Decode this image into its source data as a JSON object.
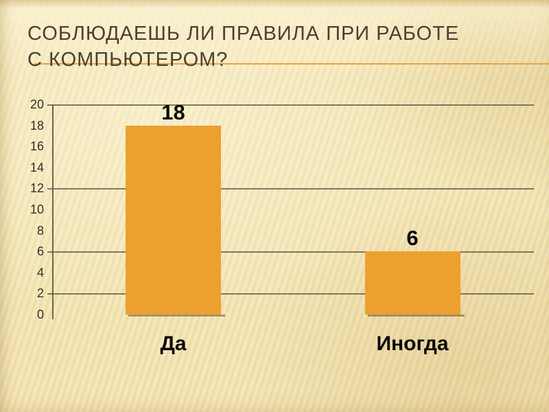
{
  "slide": {
    "title_lines": [
      "СОБЛЮДАЕШЬ ЛИ ПРАВИЛА ПРИ РАБОТЕ",
      "С КОМПЬЮТЕРОМ?"
    ]
  },
  "chart_data": {
    "type": "bar",
    "title": "",
    "categories": [
      "Да",
      "Иногда"
    ],
    "values": [
      18,
      6
    ],
    "data_labels": [
      "18",
      "6"
    ],
    "xlabel": "",
    "ylabel": "",
    "ylim": [
      0,
      20
    ],
    "yticks": [
      0,
      2,
      4,
      6,
      8,
      10,
      12,
      14,
      16,
      18,
      20
    ],
    "gridline_values": [
      2,
      6,
      12,
      20
    ],
    "grid": "horizontal-partial",
    "legend": false,
    "bar_color": "#ECA02F"
  },
  "colors": {
    "background": "#F4E6BB",
    "title_text": "#4C3E34",
    "accent_line": "#E8A33C",
    "bar": "#ECA02F",
    "gridline": "#6B6452",
    "axis_label": "#33302A",
    "data_label": "#0A0A0A"
  }
}
